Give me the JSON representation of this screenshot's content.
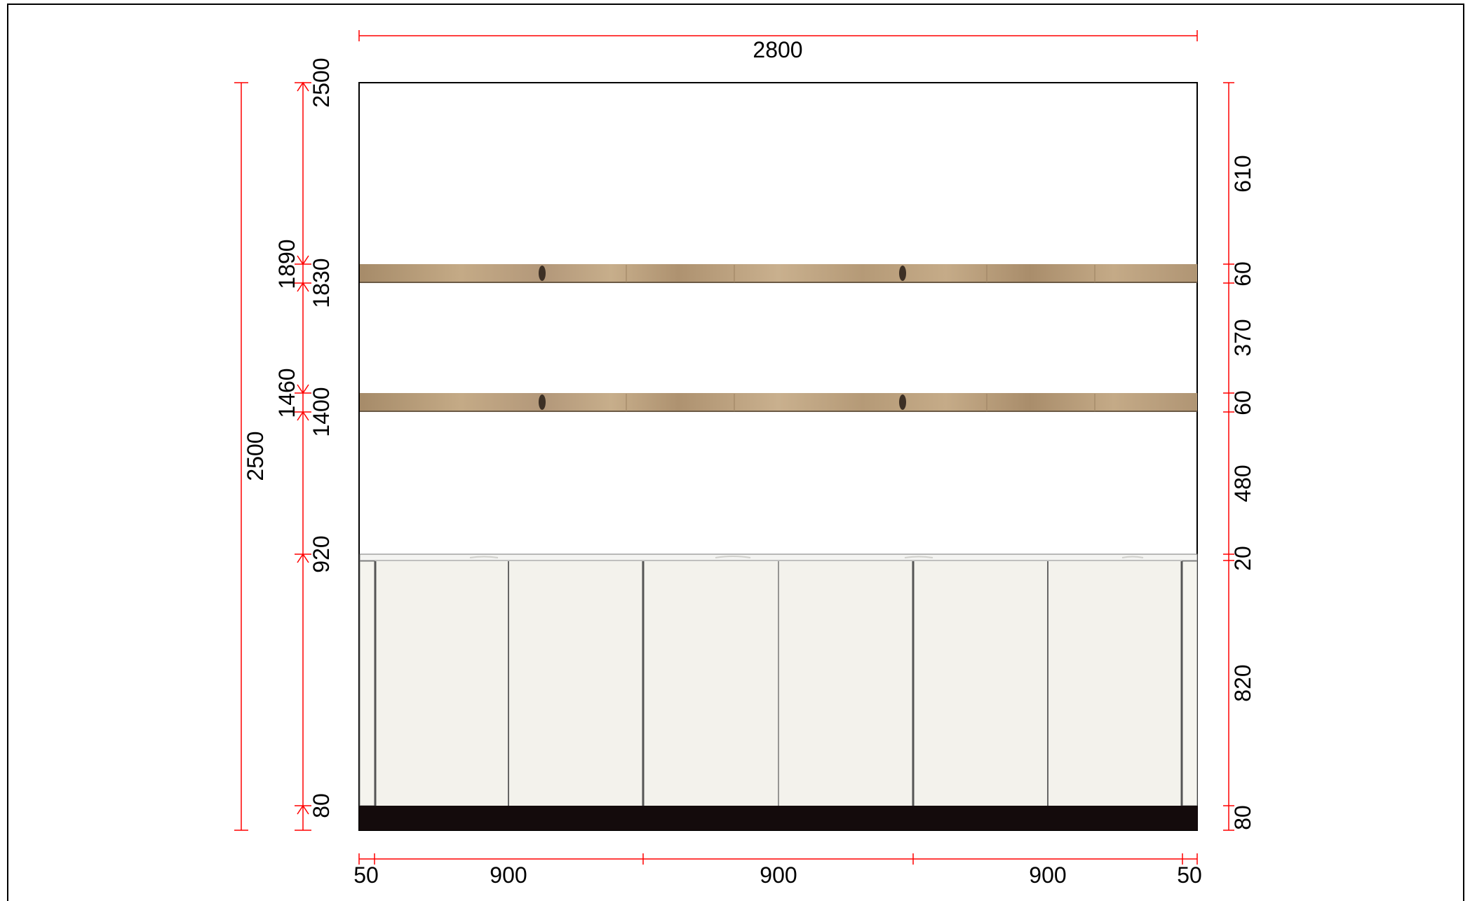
{
  "colors": {
    "dimension_line": "#ff0000",
    "text": "#000000",
    "frame": "#000000",
    "shelf_wood": "#b99d78",
    "cabinet_door": "#f3f2ec",
    "countertop": "#f4f4f2",
    "plinth": "#140b0c"
  },
  "dimensions": {
    "overall_width": "2800",
    "left_total_height": "2500",
    "left_levels": {
      "top": "2500",
      "shelf_top_upper": "1890",
      "shelf_bottom_upper": "1830",
      "shelf_top_lower": "1460",
      "shelf_bottom_lower": "1400",
      "counter": "920",
      "plinth": "80"
    },
    "right_segments": {
      "top_gap": "610",
      "upper_shelf": "60",
      "middle_gap": "370",
      "lower_shelf": "60",
      "lower_gap": "480",
      "countertop": "20",
      "cabinet": "820",
      "plinth": "80"
    },
    "bottom_segments": {
      "left_filler": "50",
      "cabinet_1": "900",
      "cabinet_2": "900",
      "cabinet_3": "900",
      "right_filler": "50"
    }
  },
  "elements": {
    "shelves": [
      "upper-shelf",
      "lower-shelf"
    ],
    "cabinet_doors": 6,
    "wood_texture": "light oak with dark knots",
    "countertop_texture": "white marble"
  }
}
